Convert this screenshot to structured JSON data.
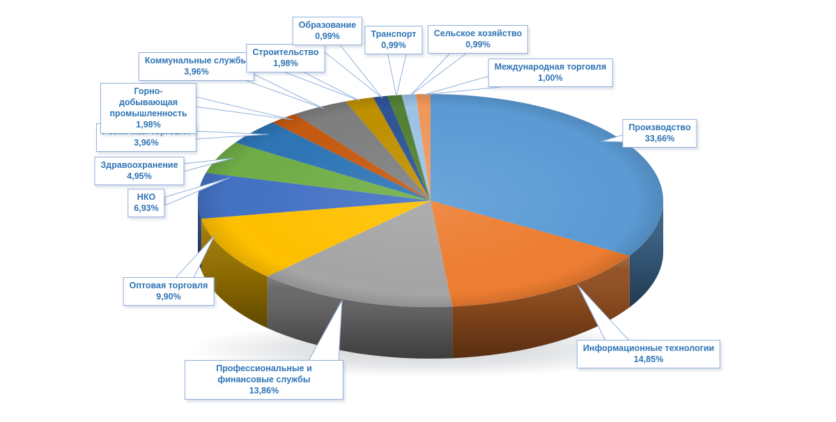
{
  "chart_data": {
    "type": "pie",
    "title": "",
    "legend": "none",
    "effect_3d": true,
    "slices": [
      {
        "label": "Производство",
        "pct_label": "33,66%",
        "value": 33.66,
        "color": "#5B9BD5"
      },
      {
        "label": "Информационные технологии",
        "pct_label": "14,85%",
        "value": 14.85,
        "color": "#ED7D31"
      },
      {
        "label": "Профессиональные и финансовые службы",
        "pct_label": "13,86%",
        "value": 13.86,
        "color": "#A5A5A5"
      },
      {
        "label": "Оптовая торговля",
        "pct_label": "9,90%",
        "value": 9.9,
        "color": "#FFC000"
      },
      {
        "label": "НКО",
        "pct_label": "6,93%",
        "value": 6.93,
        "color": "#4472C4"
      },
      {
        "label": "Здравоохранение",
        "pct_label": "4,95%",
        "value": 4.95,
        "color": "#70AD47"
      },
      {
        "label": "Розничная торговля",
        "pct_label": "3,96%",
        "value": 3.96,
        "color": "#2E75B6"
      },
      {
        "label": "Горно-добывающая промышленность",
        "pct_label": "1,98%",
        "value": 1.98,
        "color": "#C55A11"
      },
      {
        "label": "Коммунальные службы",
        "pct_label": "3,96%",
        "value": 3.96,
        "color": "#7F7F7F"
      },
      {
        "label": "Строительство",
        "pct_label": "1,98%",
        "value": 1.98,
        "color": "#BF9000"
      },
      {
        "label": "Образование",
        "pct_label": "0,99%",
        "value": 0.99,
        "color": "#2F5597"
      },
      {
        "label": "Транспорт",
        "pct_label": "0,99%",
        "value": 0.99,
        "color": "#538135"
      },
      {
        "label": "Сельское хозяйство",
        "pct_label": "0,99%",
        "value": 0.99,
        "color": "#9DC3E6"
      },
      {
        "label": "Международная торговля",
        "pct_label": "1,00%",
        "value": 1.0,
        "color": "#F1975A"
      }
    ]
  },
  "style": {
    "background": "#FFFFFF",
    "callout_border": "#8FAFD9",
    "callout_text": "#2E74B5",
    "callout_fill": "#FFFFFF"
  }
}
